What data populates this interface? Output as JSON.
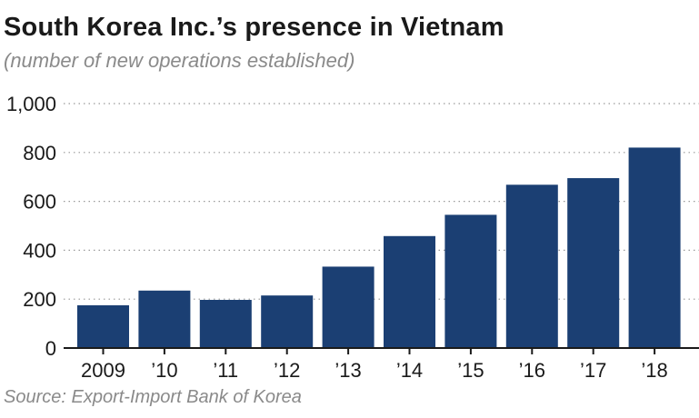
{
  "chart_data": {
    "type": "bar",
    "title": "South Korea Inc.’s presence in Vietnam",
    "subtitle": "(number of new operations established)",
    "source": "Source: Export-Import Bank of Korea",
    "categories": [
      "2009",
      "’10",
      "’11",
      "’12",
      "’13",
      "’14",
      "’15",
      "’16",
      "’17",
      "’18"
    ],
    "values": [
      175,
      235,
      197,
      215,
      333,
      458,
      545,
      668,
      695,
      820
    ],
    "ylim": [
      0,
      1000
    ],
    "yticks": [
      0,
      200,
      400,
      600,
      800,
      1000
    ],
    "ytick_labels": [
      "0",
      "200",
      "400",
      "600",
      "800",
      "1,000"
    ],
    "grid": true,
    "xlabel": "",
    "ylabel": "",
    "colors": {
      "bar": "#1b3f73",
      "grid": "#9a9a9a",
      "axis": "#1a1a1a"
    }
  }
}
